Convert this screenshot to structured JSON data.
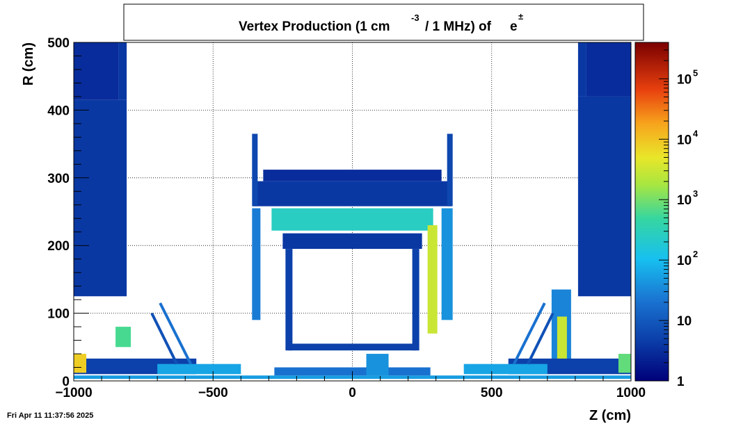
{
  "chart_data": {
    "type": "heatmap",
    "title": "Vertex Production (1 cm",
    "title_sup": "-3",
    "title_rest": "/ 1 MHz) of",
    "title_particle": "e",
    "title_particle_sup": "±",
    "xlabel": "Z (cm)",
    "ylabel": "R (cm)",
    "xlim": [
      -1000,
      1000
    ],
    "ylim": [
      0,
      500
    ],
    "xticks": [
      -1000,
      -500,
      0,
      500,
      1000
    ],
    "xtick_labels": [
      "−1000",
      "−500",
      "0",
      "500",
      "1000"
    ],
    "yticks": [
      0,
      100,
      200,
      300,
      400,
      500
    ],
    "ytick_labels": [
      "0",
      "100",
      "200",
      "300",
      "400",
      "500"
    ],
    "grid": true,
    "z_scale": "log",
    "z_range": [
      1,
      400000
    ],
    "colorbar_ticks": [
      {
        "value": 1,
        "base": "1",
        "exp": ""
      },
      {
        "value": 10,
        "base": "10",
        "exp": ""
      },
      {
        "value": 100,
        "base": "10",
        "exp": "2"
      },
      {
        "value": 1000,
        "base": "10",
        "exp": "3"
      },
      {
        "value": 10000,
        "base": "10",
        "exp": "4"
      },
      {
        "value": 100000,
        "base": "10",
        "exp": "5"
      }
    ],
    "regions": [
      {
        "name": "left-calorimeter-block",
        "z": [
          -1000,
          -810
        ],
        "r": [
          125,
          415
        ],
        "value": 4
      },
      {
        "name": "left-calorimeter-top",
        "z": [
          -1000,
          -840
        ],
        "r": [
          415,
          500
        ],
        "value": 3
      },
      {
        "name": "left-calorimeter-neck",
        "z": [
          -840,
          -810
        ],
        "r": [
          415,
          500
        ],
        "value": 4
      },
      {
        "name": "right-calorimeter-block",
        "z": [
          810,
          1000
        ],
        "r": [
          125,
          420
        ],
        "value": 4
      },
      {
        "name": "right-calorimeter-top",
        "z": [
          840,
          1000
        ],
        "r": [
          420,
          500
        ],
        "value": 3
      },
      {
        "name": "right-calorimeter-neck",
        "z": [
          810,
          840
        ],
        "r": [
          420,
          500
        ],
        "value": 4
      },
      {
        "name": "barrel-top-cap",
        "z": [
          -320,
          320
        ],
        "r": [
          295,
          312
        ],
        "value": 3
      },
      {
        "name": "barrel-upper-band",
        "z": [
          -355,
          355
        ],
        "r": [
          258,
          295
        ],
        "value": 4
      },
      {
        "name": "barrel-left-wall-top",
        "z": [
          -360,
          -340
        ],
        "r": [
          258,
          365
        ],
        "value": 6
      },
      {
        "name": "barrel-right-wall-top",
        "z": [
          340,
          360
        ],
        "r": [
          258,
          365
        ],
        "value": 6
      },
      {
        "name": "coil-band",
        "z": [
          -290,
          290
        ],
        "r": [
          222,
          255
        ],
        "value": 260
      },
      {
        "name": "inner-frame-top",
        "z": [
          -250,
          250
        ],
        "r": [
          195,
          218
        ],
        "value": 4
      },
      {
        "name": "left-wall-lower",
        "z": [
          -360,
          -330
        ],
        "r": [
          90,
          255
        ],
        "value": 25
      },
      {
        "name": "right-wall-lower",
        "z": [
          270,
          305
        ],
        "r": [
          70,
          230
        ],
        "value": 3000
      },
      {
        "name": "right-wall-outer",
        "z": [
          320,
          360
        ],
        "r": [
          90,
          255
        ],
        "value": 40
      },
      {
        "name": "inner-frame-left",
        "z": [
          -240,
          -215
        ],
        "r": [
          45,
          195
        ],
        "value": 5
      },
      {
        "name": "inner-frame-right",
        "z": [
          215,
          240
        ],
        "r": [
          45,
          195
        ],
        "value": 5
      },
      {
        "name": "inner-frame-bottom",
        "z": [
          -230,
          230
        ],
        "r": [
          45,
          55
        ],
        "value": 5
      },
      {
        "name": "right-endcap-column",
        "z": [
          715,
          785
        ],
        "r": [
          15,
          135
        ],
        "value": 30
      },
      {
        "name": "right-endcap-core",
        "z": [
          735,
          770
        ],
        "r": [
          20,
          95
        ],
        "value": 3000
      },
      {
        "name": "left-small-box",
        "z": [
          -850,
          -795
        ],
        "r": [
          50,
          80
        ],
        "value": 600
      },
      {
        "name": "left-floor-band",
        "z": [
          -1000,
          -560
        ],
        "r": [
          10,
          33
        ],
        "value": 5
      },
      {
        "name": "right-floor-band",
        "z": [
          560,
          1000
        ],
        "r": [
          10,
          33
        ],
        "value": 5
      },
      {
        "name": "left-edge-hotspot",
        "z": [
          -1000,
          -955
        ],
        "r": [
          12,
          40
        ],
        "value": 8000
      },
      {
        "name": "right-edge-hotspot",
        "z": [
          955,
          1000
        ],
        "r": [
          12,
          40
        ],
        "value": 800
      },
      {
        "name": "beam-pipe-line",
        "z": [
          -1000,
          1000
        ],
        "r": [
          3,
          8
        ],
        "value": 50
      },
      {
        "name": "left-beamline-structure",
        "z": [
          -700,
          -400
        ],
        "r": [
          10,
          25
        ],
        "value": 60
      },
      {
        "name": "right-beamline-structure",
        "z": [
          400,
          700
        ],
        "r": [
          10,
          25
        ],
        "value": 60
      },
      {
        "name": "central-tracker-support",
        "z": [
          -280,
          280
        ],
        "r": [
          8,
          20
        ],
        "value": 20
      },
      {
        "name": "central-vessel",
        "z": [
          50,
          130
        ],
        "r": [
          8,
          40
        ],
        "value": 40
      }
    ],
    "diagonal_arms": [
      {
        "name": "left-arm-outer",
        "z": [
          -690,
          -580
        ],
        "r": [
          115,
          25
        ],
        "value": 20
      },
      {
        "name": "left-arm-inner",
        "z": [
          -720,
          -630
        ],
        "r": [
          100,
          25
        ],
        "value": 8
      },
      {
        "name": "right-arm-outer",
        "z": [
          580,
          690
        ],
        "r": [
          25,
          115
        ],
        "value": 20
      },
      {
        "name": "right-arm-inner",
        "z": [
          630,
          720
        ],
        "r": [
          25,
          100
        ],
        "value": 8
      }
    ]
  },
  "footer": {
    "timestamp": "Fri Apr 11 11:37:56 2025"
  }
}
